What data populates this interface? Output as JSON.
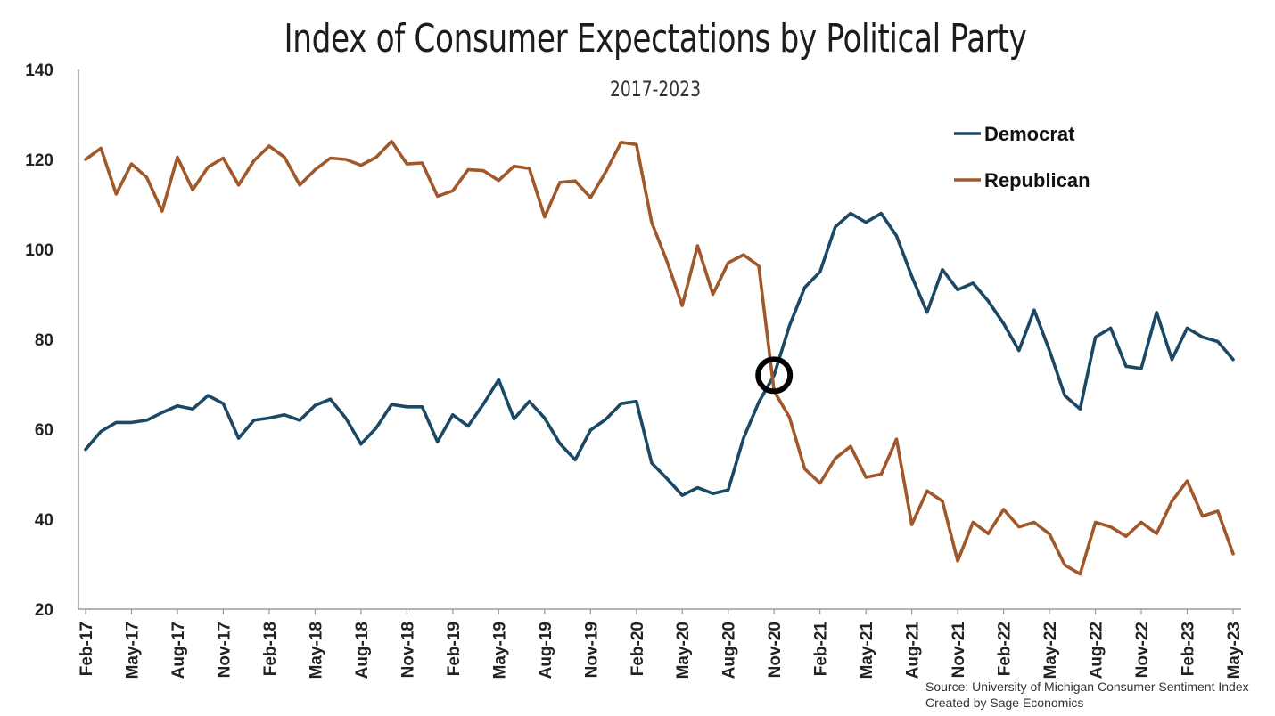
{
  "chart_data": {
    "type": "line",
    "title": "Index of Consumer Expectations by Political Party",
    "subtitle": "2017-2023",
    "xlabel": "",
    "ylabel": "",
    "ylim": [
      20,
      140
    ],
    "yticks": [
      20,
      40,
      60,
      80,
      100,
      120,
      140
    ],
    "x_tick_labels": [
      "Feb-17",
      "May-17",
      "Aug-17",
      "Nov-17",
      "Feb-18",
      "May-18",
      "Aug-18",
      "Nov-18",
      "Feb-19",
      "May-19",
      "Aug-19",
      "Nov-19",
      "Feb-20",
      "May-20",
      "Aug-20",
      "Nov-20",
      "Feb-21",
      "May-21",
      "Aug-21",
      "Nov-21",
      "Feb-22",
      "May-22",
      "Aug-22",
      "Nov-22",
      "Feb-23",
      "May-23"
    ],
    "legend_position": "top-right",
    "grid": false,
    "annotation": {
      "type": "circle",
      "at": "Nov-20",
      "value": 72
    },
    "series": [
      {
        "name": "Democrat",
        "color": "#1b4965",
        "values": [
          55.5,
          59.5,
          61.5,
          61.5,
          62,
          63.7,
          65.2,
          64.5,
          67.5,
          65.7,
          58,
          62,
          62.5,
          63.2,
          62,
          65.3,
          66.7,
          62.5,
          56.7,
          60.3,
          65.5,
          65,
          65,
          57.2,
          63.2,
          60.7,
          65.6,
          71,
          62.3,
          66.2,
          62.5,
          56.8,
          53.2,
          59.8,
          62.2,
          65.7,
          66.2,
          52.5,
          49,
          45.3,
          47,
          45.7,
          46.5,
          58,
          66,
          72,
          83,
          91.5,
          95,
          105,
          108,
          106,
          108,
          103,
          94,
          86,
          95.5,
          91,
          92.5,
          88.5,
          83.5,
          77.5,
          86.5,
          77.5,
          67.5,
          64.5,
          80.5,
          82.5,
          74,
          73.5,
          86,
          75.5,
          82.5,
          80.5,
          79.5,
          75.5
        ]
      },
      {
        "name": "Republican",
        "color": "#a0582a",
        "values": [
          120,
          122.5,
          112.3,
          119,
          116,
          108.5,
          120.5,
          113.2,
          118.3,
          120.3,
          114.3,
          119.7,
          123,
          120.5,
          114.3,
          117.7,
          120.3,
          120,
          118.7,
          120.5,
          124,
          119,
          119.2,
          111.8,
          113,
          117.7,
          117.5,
          115.3,
          118.5,
          118,
          107.2,
          114.9,
          115.2,
          111.5,
          117.2,
          123.8,
          123.3,
          106,
          97.3,
          87.5,
          100.8,
          90,
          97,
          98.8,
          96.3,
          68.5,
          62.7,
          51.2,
          48,
          53.5,
          56.2,
          49.3,
          50,
          57.8,
          38.8,
          46.3,
          44,
          30.7,
          39.3,
          36.8,
          42.2,
          38.3,
          39.3,
          36.7,
          29.8,
          27.8,
          39.3,
          38.3,
          36.2,
          39.3,
          36.8,
          44,
          48.5,
          40.7,
          41.8,
          32.3
        ]
      }
    ]
  },
  "source_lines": [
    "Source: University of Michigan Consumer Sentiment Index",
    "Created by Sage Economics"
  ]
}
